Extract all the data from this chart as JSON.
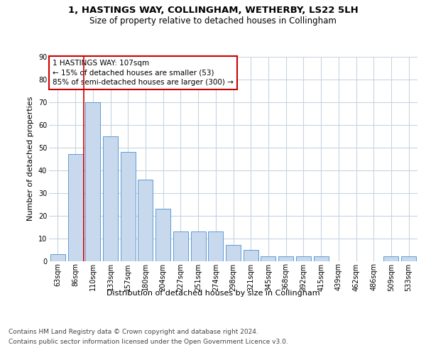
{
  "title": "1, HASTINGS WAY, COLLINGHAM, WETHERBY, LS22 5LH",
  "subtitle": "Size of property relative to detached houses in Collingham",
  "xlabel": "Distribution of detached houses by size in Collingham",
  "ylabel": "Number of detached properties",
  "categories": [
    "63sqm",
    "86sqm",
    "110sqm",
    "133sqm",
    "157sqm",
    "180sqm",
    "204sqm",
    "227sqm",
    "251sqm",
    "274sqm",
    "298sqm",
    "321sqm",
    "345sqm",
    "368sqm",
    "392sqm",
    "415sqm",
    "439sqm",
    "462sqm",
    "486sqm",
    "509sqm",
    "533sqm"
  ],
  "values": [
    3,
    47,
    70,
    55,
    48,
    36,
    23,
    13,
    13,
    13,
    7,
    5,
    2,
    2,
    2,
    2,
    0,
    0,
    0,
    2,
    2
  ],
  "bar_color": "#c9d9ed",
  "bar_edge_color": "#5b9bd5",
  "highlight_index": 2,
  "highlight_line_color": "#cc0000",
  "property_size": 107,
  "pct_smaller": 15,
  "n_smaller": 53,
  "pct_larger_semi": 85,
  "n_larger_semi": 300,
  "annotation_box_color": "#cc0000",
  "ylim": [
    0,
    90
  ],
  "yticks": [
    0,
    10,
    20,
    30,
    40,
    50,
    60,
    70,
    80,
    90
  ],
  "footer1": "Contains HM Land Registry data © Crown copyright and database right 2024.",
  "footer2": "Contains public sector information licensed under the Open Government Licence v3.0.",
  "bg_color": "#ffffff",
  "grid_color": "#c8d4e3",
  "title_fontsize": 9.5,
  "subtitle_fontsize": 8.5,
  "axis_label_fontsize": 8,
  "tick_fontsize": 7,
  "annotation_fontsize": 7.5,
  "footer_fontsize": 6.5
}
